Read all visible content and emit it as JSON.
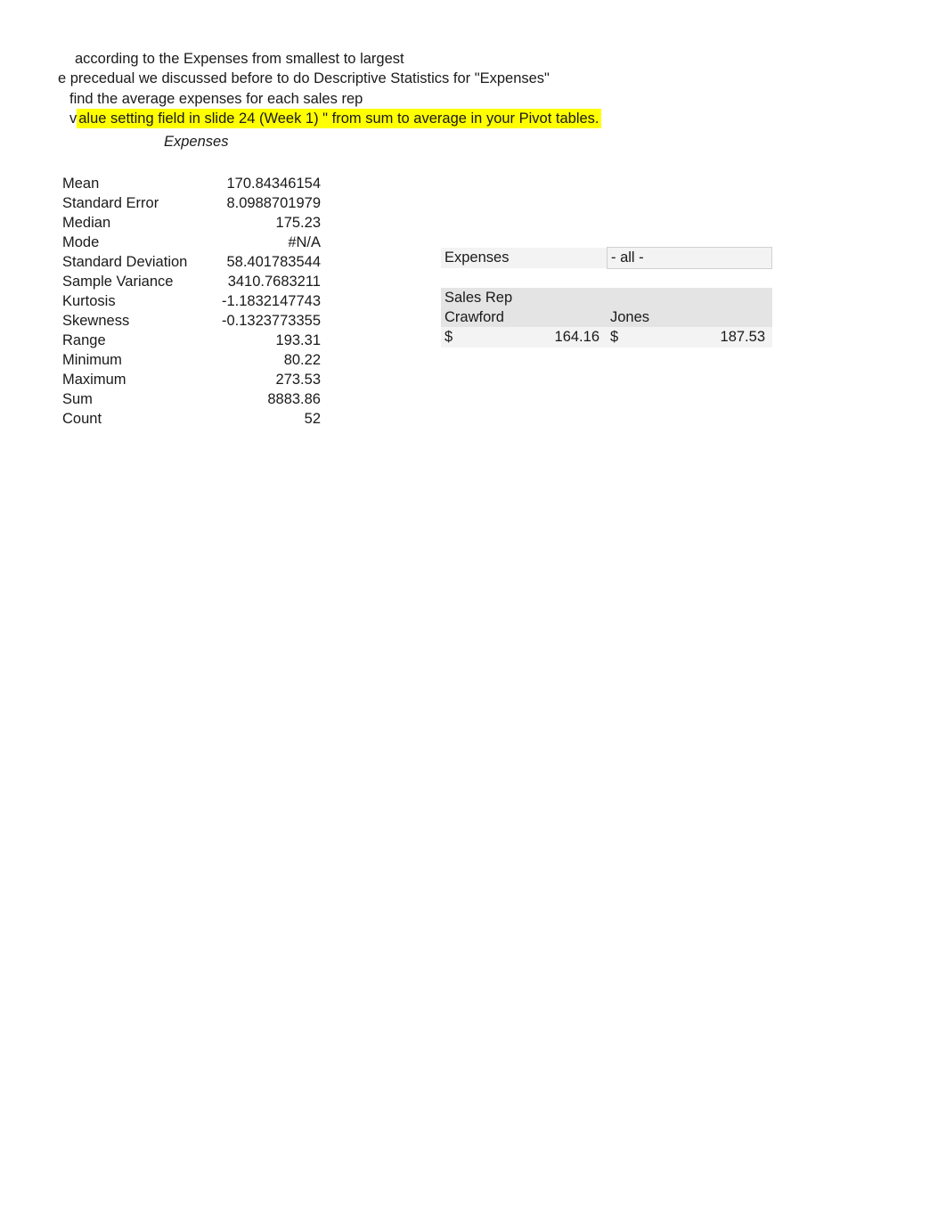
{
  "instructions": {
    "line1": "according to the Expenses from smallest to largest",
    "line2": "e precedual we discussed before to do Descriptive Statistics for \"Expenses\"",
    "line3": "find the average expenses for each sales rep",
    "line4_prefix": "v",
    "line4_highlight": "alue setting field in slide 24 (Week 1) \" from sum to average in your Pivot tables."
  },
  "stats": {
    "title": "Expenses",
    "rows": [
      {
        "label": "Mean",
        "value": "170.84346154"
      },
      {
        "label": "Standard Error",
        "value": "8.0988701979"
      },
      {
        "label": "Median",
        "value": "175.23"
      },
      {
        "label": "Mode",
        "value": "#N/A"
      },
      {
        "label": "Standard Deviation",
        "value": "58.401783544"
      },
      {
        "label": "Sample Variance",
        "value": "3410.7683211"
      },
      {
        "label": "Kurtosis",
        "value": "-1.1832147743"
      },
      {
        "label": "Skewness",
        "value": "-0.1323773355"
      },
      {
        "label": "Range",
        "value": "193.31"
      },
      {
        "label": "Minimum",
        "value": "80.22"
      },
      {
        "label": "Maximum",
        "value": "273.53"
      },
      {
        "label": "Sum",
        "value": "8883.86"
      },
      {
        "label": "Count",
        "value": "52"
      }
    ]
  },
  "pivot": {
    "filter_label": "Expenses",
    "filter_value": "- all -",
    "row_header": "Sales Rep",
    "columns": [
      "Crawford",
      "Jones"
    ],
    "currency": "$",
    "values": [
      "164.16",
      "187.53"
    ]
  },
  "colors": {
    "highlight_bg": "#ffff00",
    "header_bg": "#e4e4e4",
    "light_bg": "#f3f3f3",
    "text": "#1a1a1a"
  }
}
